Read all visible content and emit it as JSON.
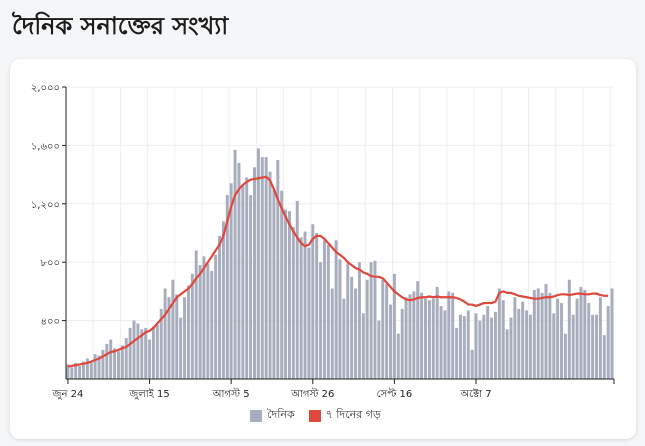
{
  "page": {
    "title": "দৈনিক সনাক্তের সংখ্যা"
  },
  "colors": {
    "bar": "#a7adbc",
    "line": "#e0473d",
    "grid": "#eeeeee",
    "axis": "#222222"
  },
  "chart_data": {
    "type": "bar",
    "ylim": [
      0,
      2000
    ],
    "yticks": [
      {
        "value": 400,
        "label": "৪০০"
      },
      {
        "value": 800,
        "label": "৮০০"
      },
      {
        "value": 1200,
        "label": "১,২০০"
      },
      {
        "value": 1600,
        "label": "১,৬০০"
      },
      {
        "value": 2000,
        "label": "২,০০০"
      }
    ],
    "xticks": [
      {
        "index": 0,
        "label": "জুন 24"
      },
      {
        "index": 21,
        "label": "জুলাই 15"
      },
      {
        "index": 42,
        "label": "আগস্ট 5"
      },
      {
        "index": 63,
        "label": "আগস্ট 26"
      },
      {
        "index": 84,
        "label": "সেপ্ট 16"
      },
      {
        "index": 105,
        "label": "অক্টো 7"
      }
    ],
    "series": [
      {
        "name": "দৈনিক",
        "type": "bar",
        "values": [
          100,
          80,
          110,
          90,
          120,
          140,
          120,
          170,
          160,
          200,
          240,
          270,
          210,
          190,
          230,
          280,
          350,
          400,
          380,
          340,
          350,
          270,
          360,
          370,
          480,
          620,
          560,
          680,
          580,
          420,
          560,
          640,
          720,
          880,
          780,
          840,
          790,
          740,
          850,
          980,
          1080,
          1260,
          1340,
          1570,
          1480,
          1330,
          1380,
          1260,
          1450,
          1580,
          1520,
          1520,
          1420,
          1300,
          1500,
          1290,
          1160,
          1150,
          1040,
          1220,
          970,
          1010,
          900,
          1060,
          1000,
          800,
          950,
          920,
          620,
          950,
          820,
          550,
          790,
          700,
          620,
          800,
          450,
          680,
          800,
          810,
          400,
          680,
          650,
          510,
          720,
          310,
          480,
          560,
          580,
          600,
          670,
          590,
          550,
          540,
          550,
          630,
          500,
          470,
          600,
          590,
          350,
          440,
          430,
          470,
          200,
          450,
          400,
          440,
          500,
          420,
          460,
          620,
          540,
          340,
          420,
          560,
          480,
          530,
          470,
          440,
          610,
          620,
          590,
          650,
          590,
          450,
          550,
          520,
          310,
          680,
          440,
          550,
          630,
          610,
          520,
          440,
          440,
          560,
          300,
          500,
          620
        ],
        "_note_removed": true
      },
      {
        "name": "৭ দিনের গড়",
        "type": "line",
        "values": [
          85,
          90,
          95,
          100,
          105,
          110,
          120,
          130,
          140,
          155,
          170,
          185,
          190,
          200,
          210,
          220,
          240,
          260,
          280,
          300,
          320,
          330,
          350,
          380,
          410,
          440,
          480,
          520,
          560,
          580,
          600,
          620,
          650,
          690,
          720,
          760,
          800,
          840,
          880,
          920,
          980,
          1080,
          1180,
          1260,
          1300,
          1330,
          1350,
          1365,
          1370,
          1375,
          1380,
          1385,
          1360,
          1300,
          1230,
          1170,
          1110,
          1060,
          1010,
          970,
          930,
          910,
          920,
          960,
          980,
          980,
          960,
          930,
          900,
          870,
          850,
          830,
          800,
          780,
          760,
          750,
          730,
          720,
          705,
          700,
          700,
          690,
          660,
          630,
          600,
          580,
          560,
          545,
          540,
          545,
          555,
          560,
          560,
          565,
          560,
          565,
          560,
          560,
          560,
          560,
          555,
          545,
          530,
          510,
          510,
          500,
          510,
          520,
          520,
          520,
          530,
          590,
          600,
          590,
          590,
          580,
          570,
          565,
          560,
          555,
          550,
          550,
          555,
          560,
          560,
          565,
          575,
          580,
          580,
          575,
          580,
          585,
          585,
          580,
          580,
          585,
          585,
          575,
          570,
          570
        ]
      }
    ],
    "legend": [
      {
        "label": "দৈনিক",
        "color": "#a7adbc"
      },
      {
        "label": "৭ দিনের গড়",
        "color": "#e0473d"
      }
    ]
  }
}
